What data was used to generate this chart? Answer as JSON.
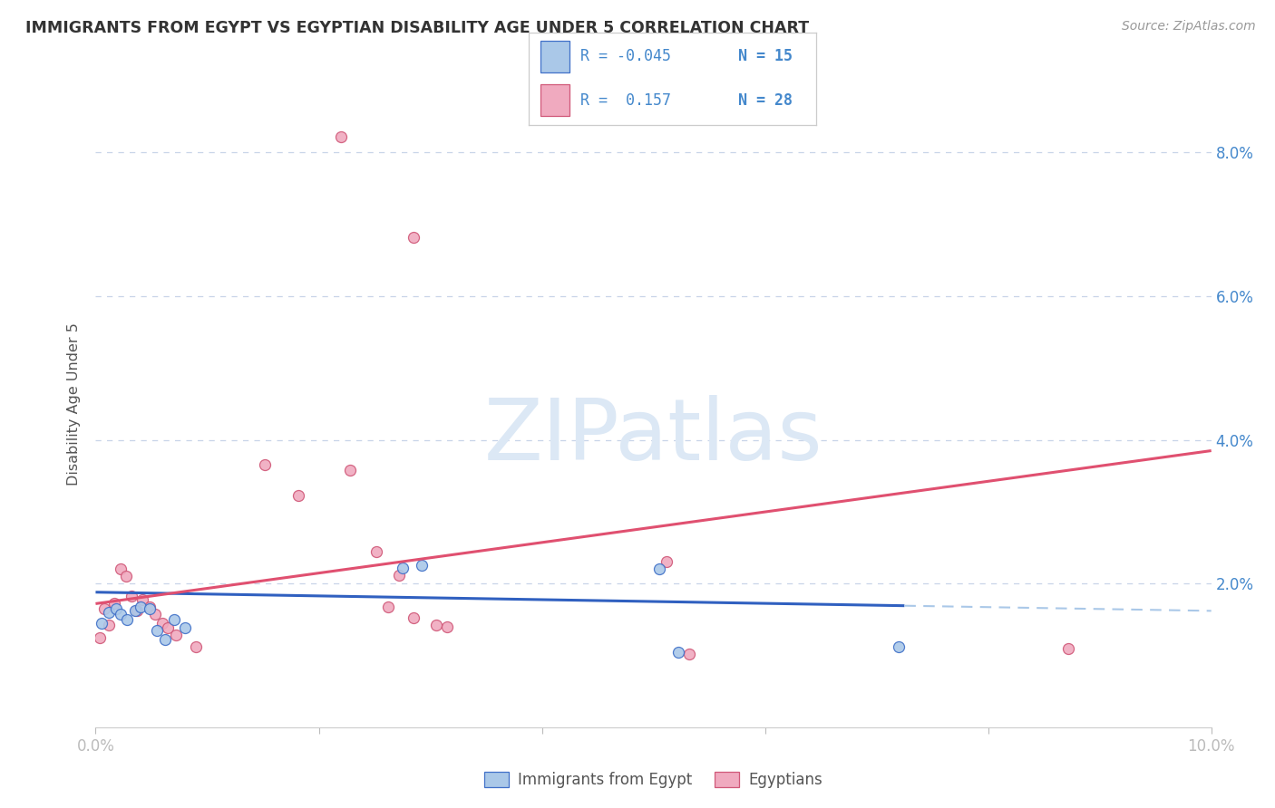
{
  "title": "IMMIGRANTS FROM EGYPT VS EGYPTIAN DISABILITY AGE UNDER 5 CORRELATION CHART",
  "source": "Source: ZipAtlas.com",
  "ylabel": "Disability Age Under 5",
  "legend_blue_label": "Immigrants from Egypt",
  "legend_pink_label": "Egyptians",
  "xlim": [
    0.0,
    10.0
  ],
  "ylim": [
    0.0,
    9.0
  ],
  "yticks": [
    0.0,
    2.0,
    4.0,
    6.0,
    8.0
  ],
  "ytick_labels": [
    "",
    "2.0%",
    "4.0%",
    "6.0%",
    "8.0%"
  ],
  "xticks": [
    0.0,
    2.0,
    4.0,
    6.0,
    8.0,
    10.0
  ],
  "blue_scatter_x": [
    0.05,
    0.12,
    0.18,
    0.22,
    0.28,
    0.35,
    0.4,
    0.48,
    0.55,
    0.62,
    0.7,
    0.8,
    2.75,
    2.92,
    5.05,
    5.22,
    7.2
  ],
  "blue_scatter_y": [
    1.45,
    1.6,
    1.65,
    1.58,
    1.5,
    1.62,
    1.68,
    1.65,
    1.35,
    1.22,
    1.5,
    1.38,
    2.22,
    2.25,
    2.2,
    1.05,
    1.12
  ],
  "pink_scatter_x": [
    0.04,
    0.08,
    0.12,
    0.17,
    0.22,
    0.27,
    0.32,
    0.37,
    0.42,
    0.48,
    0.53,
    0.6,
    0.65,
    0.72,
    0.9,
    1.52,
    1.82,
    2.28,
    2.52,
    2.62,
    2.72,
    2.85,
    3.05,
    3.15,
    5.12,
    5.32,
    8.72
  ],
  "pink_scatter_y": [
    1.25,
    1.65,
    1.42,
    1.72,
    2.2,
    2.1,
    1.82,
    1.62,
    1.78,
    1.68,
    1.58,
    1.45,
    1.38,
    1.28,
    1.12,
    3.65,
    3.22,
    3.58,
    2.45,
    1.68,
    2.12,
    1.52,
    1.42,
    1.4,
    2.3,
    1.02,
    1.1
  ],
  "pink_outlier1_x": 2.2,
  "pink_outlier1_y": 8.22,
  "pink_outlier2_x": 2.85,
  "pink_outlier2_y": 6.82,
  "blue_color": "#aac8e8",
  "pink_color": "#f0aabf",
  "blue_edge_color": "#4070c8",
  "pink_edge_color": "#d05878",
  "blue_line_color": "#3060c0",
  "pink_line_color": "#e05070",
  "blue_line_x0": 0.0,
  "blue_line_x1": 10.0,
  "blue_line_y0": 1.88,
  "blue_line_y1": 1.62,
  "pink_line_x0": 0.0,
  "pink_line_x1": 10.0,
  "pink_line_y0": 1.72,
  "pink_line_y1": 3.85,
  "blue_solid_end_x": 7.25,
  "pink_solid_end_x": 10.0,
  "background_color": "#ffffff",
  "grid_color": "#c8d4e8",
  "title_color": "#333333",
  "axis_tick_color": "#4488cc",
  "scatter_size": 75,
  "watermark_text": "ZIPatlas",
  "watermark_color": "#dce8f5"
}
